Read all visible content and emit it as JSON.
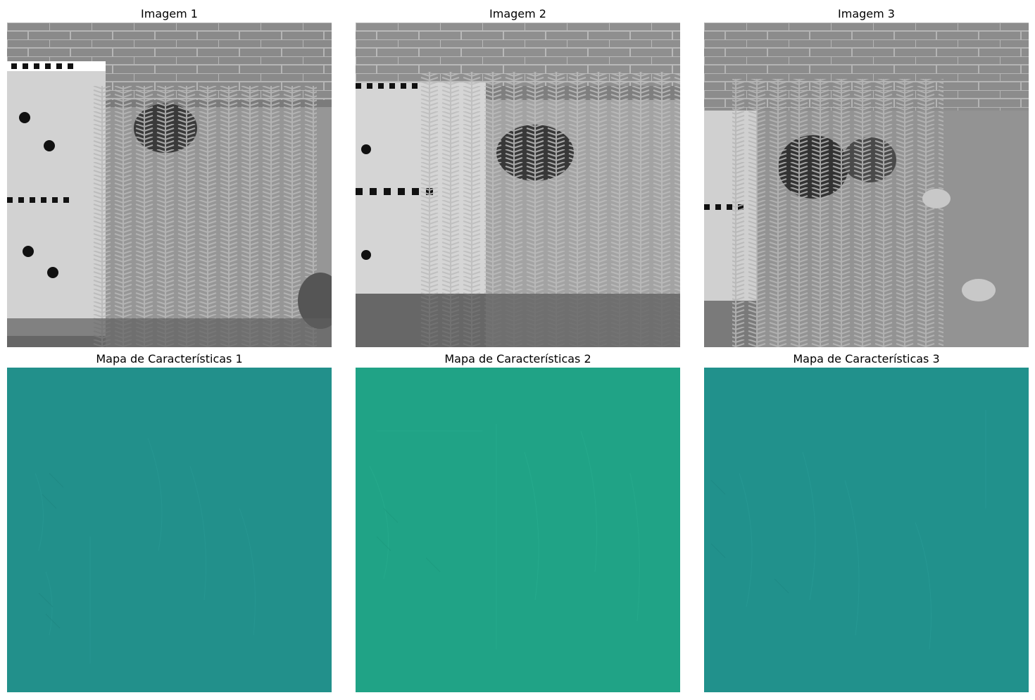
{
  "panels": [
    {
      "title": "Imagem 1",
      "kind": "grayscale-photo",
      "subject": "fern"
    },
    {
      "title": "Imagem 2",
      "kind": "grayscale-photo",
      "subject": "fern"
    },
    {
      "title": "Imagem 3",
      "kind": "grayscale-photo",
      "subject": "fern"
    },
    {
      "title": "Mapa de Características 1",
      "kind": "feature-map",
      "color": "#22908b"
    },
    {
      "title": "Mapa de Características 2",
      "kind": "feature-map",
      "color": "#20a386"
    },
    {
      "title": "Mapa de Características 3",
      "kind": "feature-map",
      "color": "#21918c"
    }
  ]
}
